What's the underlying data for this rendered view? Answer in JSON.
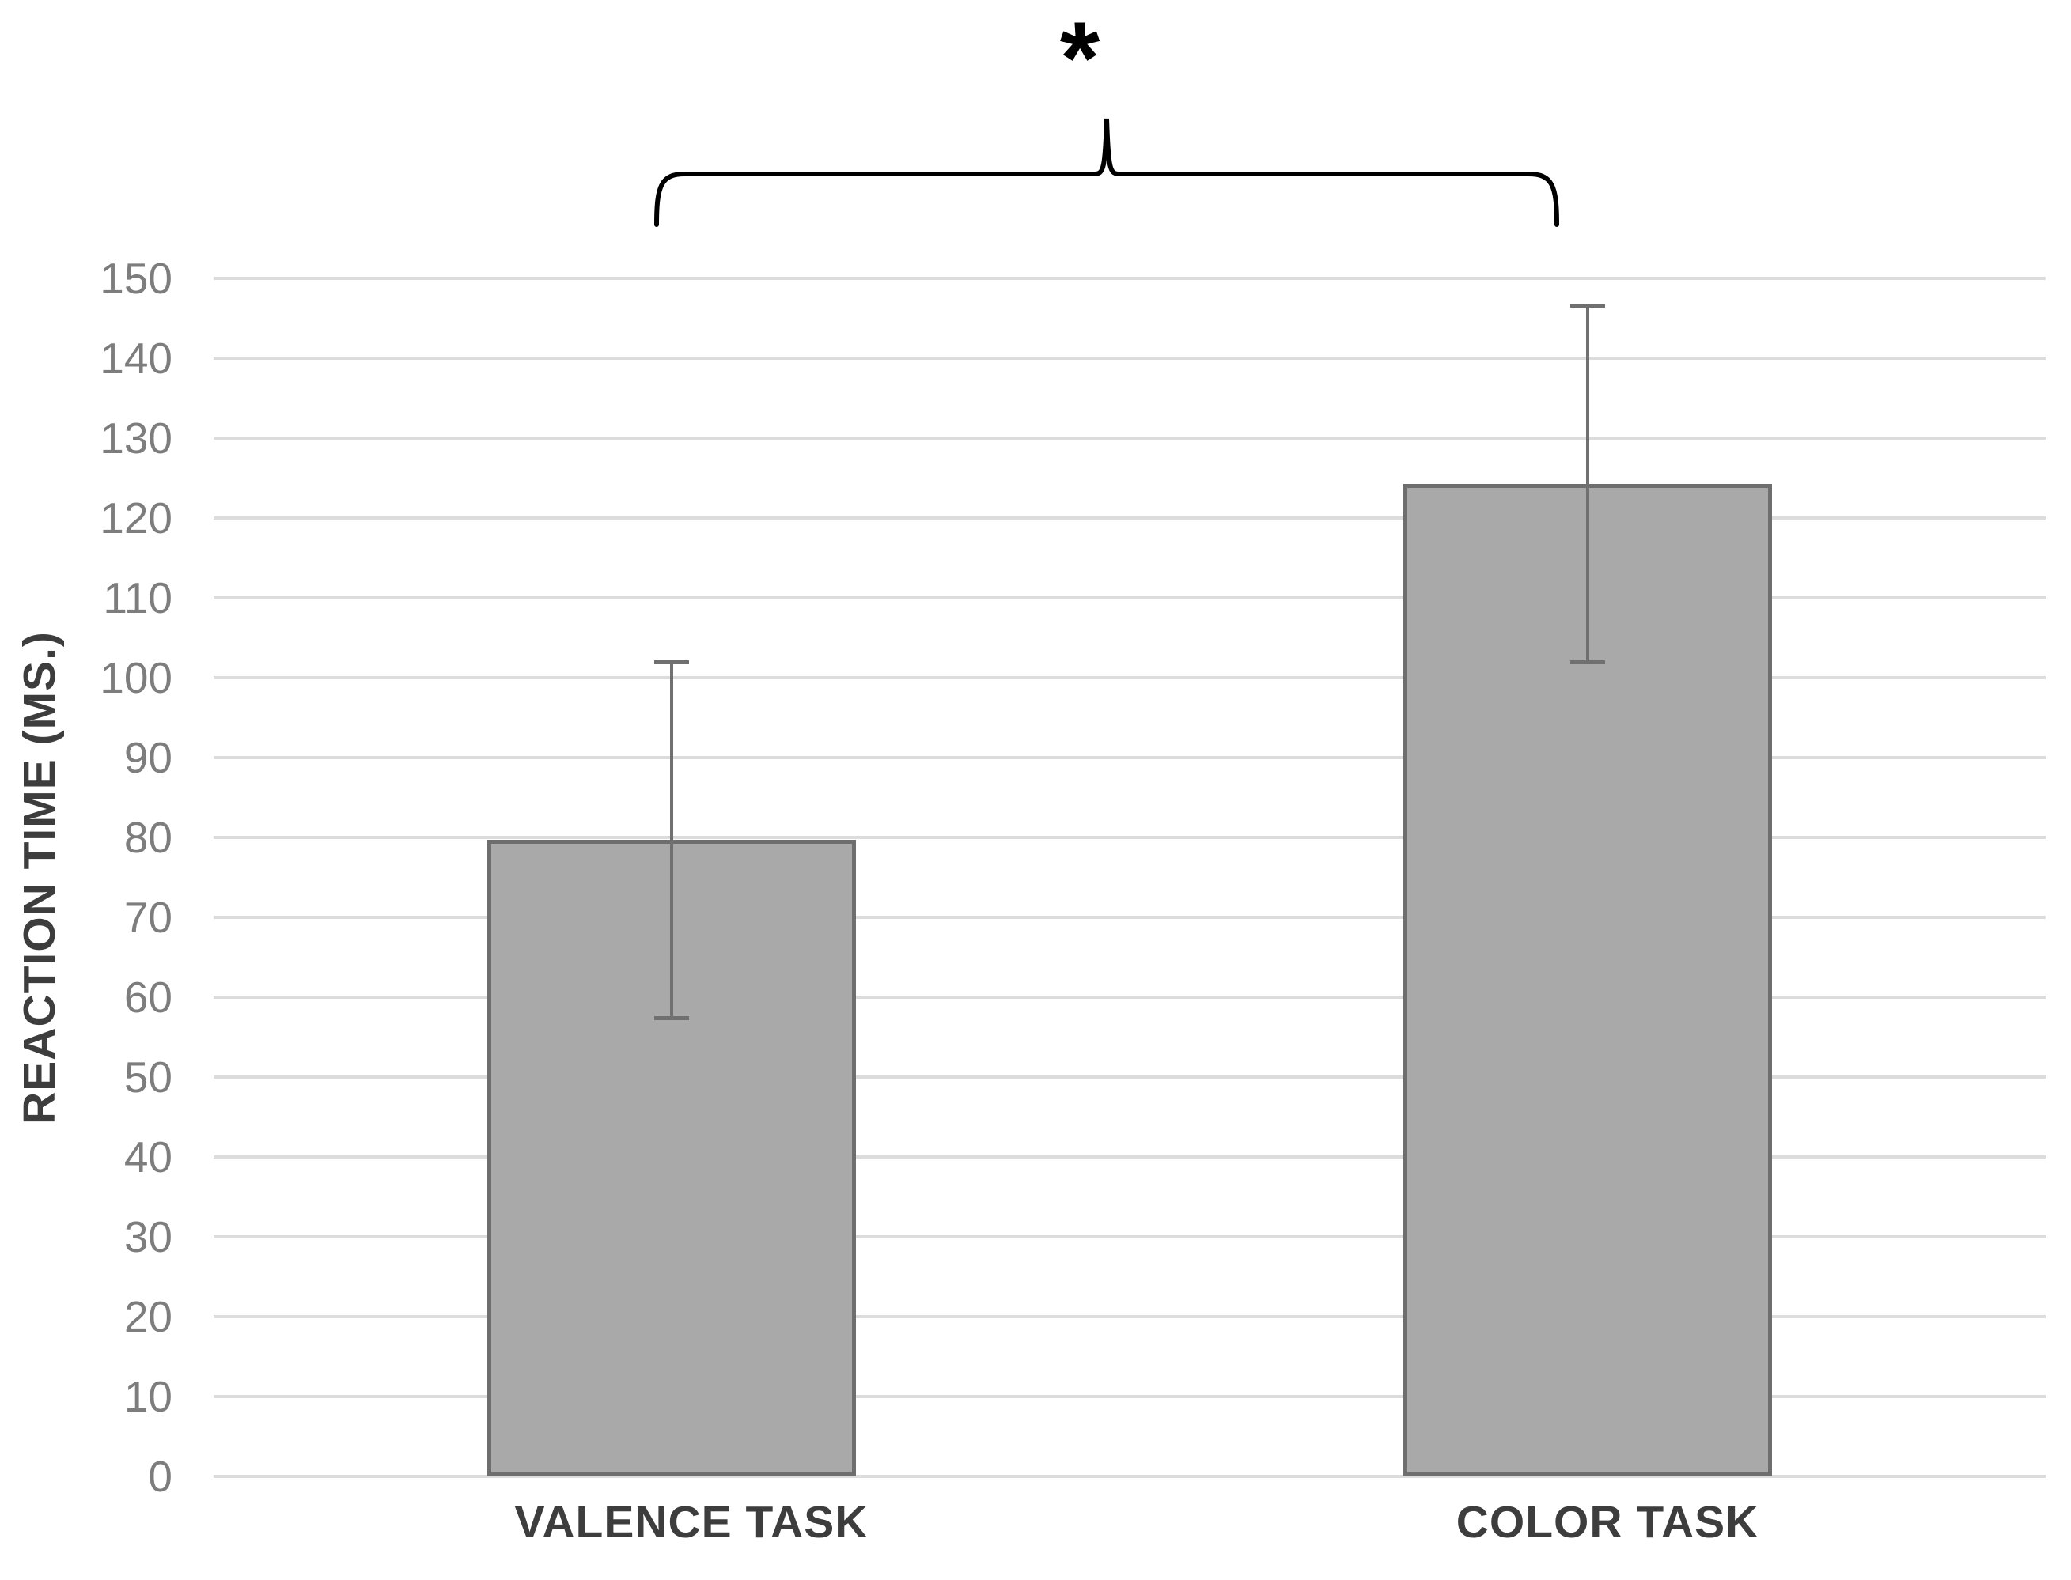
{
  "chart_data": {
    "type": "bar",
    "title": "",
    "categories": [
      "VALENCE TASK",
      "COLOR TASK"
    ],
    "values": [
      79.7,
      124.3
    ],
    "error_bars": [
      22.3,
      22.3
    ],
    "error_ranges": [
      [
        57.4,
        102.0
      ],
      [
        102.0,
        146.6
      ]
    ],
    "ylabel": "REACTION TIME (MS.)",
    "xlabel": "",
    "ylim": [
      0,
      150
    ],
    "ytick_step": 10,
    "yticks": [
      0,
      10,
      20,
      30,
      40,
      50,
      60,
      70,
      80,
      90,
      100,
      110,
      120,
      130,
      140,
      150
    ],
    "grid": "horizontal",
    "legend": "none",
    "significance": {
      "label": "*",
      "between": [
        "VALENCE TASK",
        "COLOR TASK"
      ],
      "marker": "bracket"
    },
    "colors": {
      "bar_fill": "#a9a9a9",
      "bar_border": "#6e6e6e",
      "error_bar": "#707070",
      "gridline": "#dcdcdc",
      "tick_label": "#7d7d7d",
      "axis_label": "#3d3d3d",
      "bracket": "#000000",
      "background": "#ffffff"
    }
  }
}
